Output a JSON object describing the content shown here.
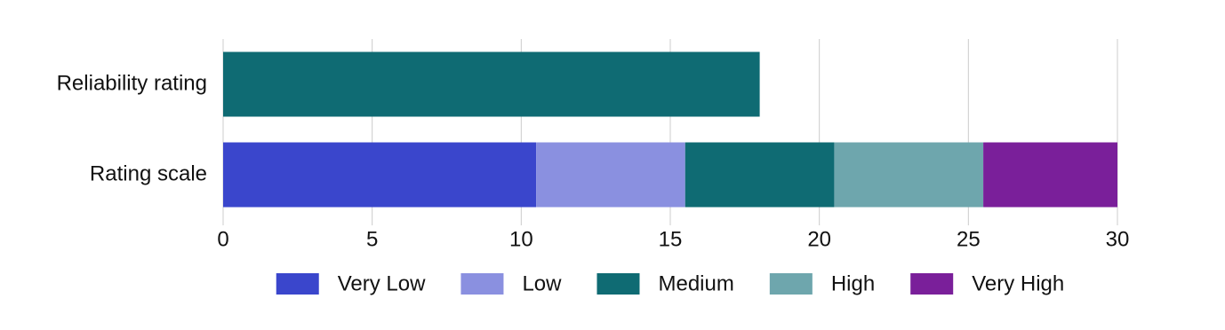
{
  "chart_data": {
    "type": "stacked-barh",
    "categories": [
      "Reliability rating",
      "Rating scale"
    ],
    "series": [
      {
        "name": "Very Low",
        "color": "#3a46cc",
        "values": [
          null,
          10.5
        ]
      },
      {
        "name": "Low",
        "color": "#8a90e0",
        "values": [
          null,
          5
        ]
      },
      {
        "name": "Medium",
        "color": "#0f6b73",
        "values": [
          18,
          5
        ]
      },
      {
        "name": "High",
        "color": "#6ea6ad",
        "values": [
          null,
          5
        ]
      },
      {
        "name": "Very High",
        "color": "#7a1f9a",
        "values": [
          null,
          4.5
        ]
      }
    ],
    "xlim": [
      0,
      30
    ],
    "xticks": [
      0,
      5,
      10,
      15,
      20,
      25,
      30
    ],
    "grid": true,
    "legend": "bottom"
  }
}
